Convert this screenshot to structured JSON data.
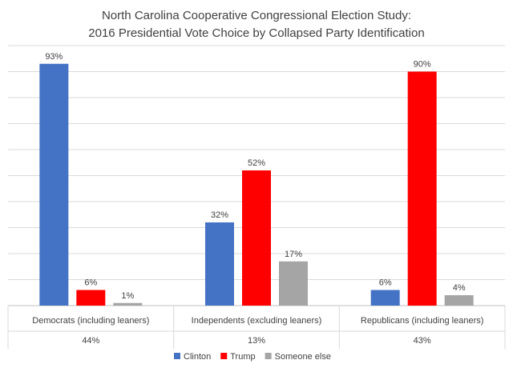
{
  "chart_data": {
    "type": "bar",
    "title_lines": [
      "North Carolina Cooperative Congressional Election Study:",
      "2016 Presidential Vote Choice by Collapsed Party Identification"
    ],
    "categories": [
      {
        "label": "Democrats (including leaners)",
        "share": "44%"
      },
      {
        "label": "Independents (excluding leaners)",
        "share": "13%"
      },
      {
        "label": "Republicans (including leaners)",
        "share": "43%"
      }
    ],
    "series": [
      {
        "name": "Clinton",
        "color": "#4472C4",
        "values": [
          93,
          32,
          6
        ],
        "labels": [
          "93%",
          "32%",
          "6%"
        ]
      },
      {
        "name": "Trump",
        "color": "#FF0000",
        "values": [
          6,
          52,
          90
        ],
        "labels": [
          "6%",
          "52%",
          "90%"
        ]
      },
      {
        "name": "Someone else",
        "color": "#A5A5A5",
        "values": [
          1,
          17,
          4
        ],
        "labels": [
          "1%",
          "17%",
          "4%"
        ]
      }
    ],
    "ylim": [
      0,
      100
    ],
    "grid": true,
    "legend": "bottom"
  }
}
